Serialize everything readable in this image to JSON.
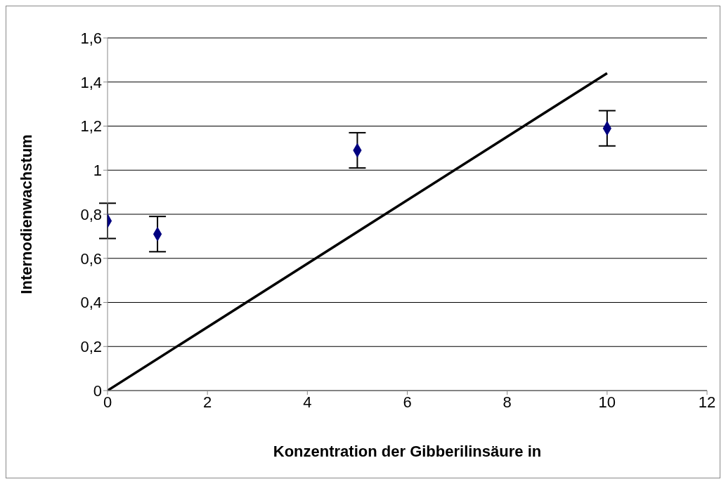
{
  "chart_data": {
    "type": "scatter",
    "xlabel": "Konzentration der Gibberilinsäure in",
    "ylabel": "Internodienwachstum",
    "x": [
      0,
      1,
      5,
      10
    ],
    "series": [
      {
        "type": "scatter",
        "color": "#000080",
        "values": [
          0.77,
          0.71,
          1.09,
          1.19
        ],
        "errors": [
          0.08,
          0.08,
          0.08,
          0.08
        ],
        "marker": "diamond"
      },
      {
        "type": "line",
        "color": "#000000",
        "x": [
          0,
          10
        ],
        "values": [
          0,
          1.44
        ],
        "marker": "none",
        "line_style": "solid"
      }
    ],
    "xlim": [
      0,
      12
    ],
    "xticks": [
      0,
      2,
      4,
      6,
      8,
      10,
      12
    ],
    "ylim": [
      0,
      1.6
    ],
    "yticks": [
      0,
      {
        "value": 0.2,
        "label": "0,2"
      },
      {
        "value": 0.4,
        "label": "0,4"
      },
      {
        "value": 0.6,
        "label": "0,6"
      },
      {
        "value": 0.8,
        "label": "0,8"
      },
      1,
      {
        "value": 1.2,
        "label": "1,2"
      },
      {
        "value": 1.4,
        "label": "1,4"
      },
      {
        "value": 1.6,
        "label": "1,6"
      }
    ],
    "grid": "y",
    "legend": false
  }
}
